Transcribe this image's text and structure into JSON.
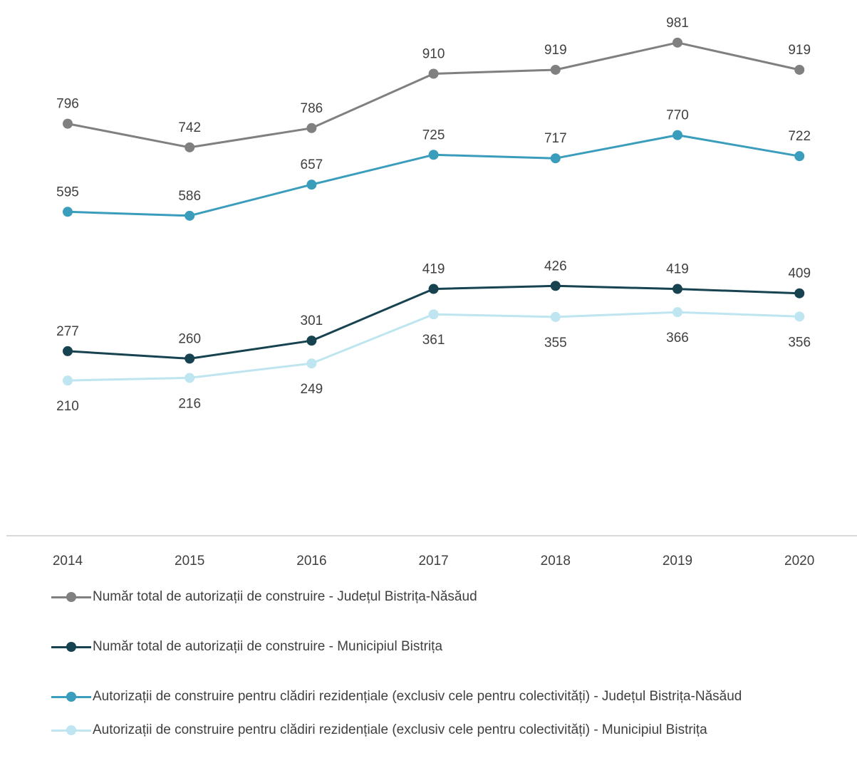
{
  "chart_data": {
    "type": "line",
    "categories": [
      "2014",
      "2015",
      "2016",
      "2017",
      "2018",
      "2019",
      "2020"
    ],
    "ylim": [
      0,
      1150
    ],
    "grid": false,
    "legend_position": "bottom",
    "series": [
      {
        "name": "Număr total de autorizații de construire - Județul Bistrița-Năsăud",
        "values": [
          796,
          742,
          786,
          910,
          919,
          981,
          919
        ],
        "color": "#808080",
        "label_position": "above"
      },
      {
        "name": "Număr total de autorizații de construire - Municipiul Bistrița",
        "values": [
          277,
          260,
          301,
          419,
          426,
          419,
          409
        ],
        "color": "#17424F",
        "label_position": "above"
      },
      {
        "name": "Autorizații de construire pentru clădiri rezidențiale (exclusiv cele pentru colectivități) - Județul Bistrița-Năsăud",
        "values": [
          595,
          586,
          657,
          725,
          717,
          770,
          722
        ],
        "color": "#3A9DBC",
        "label_position": "above"
      },
      {
        "name": "Autorizații de construire pentru clădiri rezidențiale (exclusiv cele pentru colectivități) - Municipiul Bistrița",
        "values": [
          210,
          216,
          249,
          361,
          355,
          366,
          356
        ],
        "color": "#BEE5F0",
        "label_position": "below"
      }
    ]
  }
}
